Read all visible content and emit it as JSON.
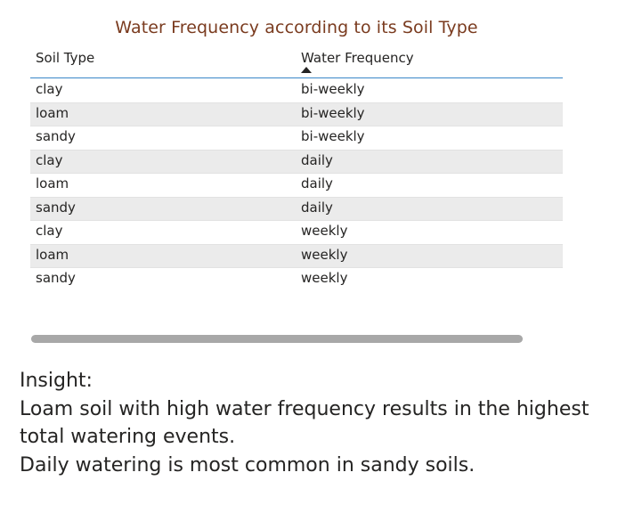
{
  "table_visual": {
    "title": "Water Frequency according to its Soil Type",
    "columns": [
      {
        "label": "Soil Type",
        "sorted": false
      },
      {
        "label": "Water Frequency",
        "sorted": true,
        "sort_direction": "ascending"
      }
    ],
    "rows": [
      {
        "soil_type": "clay",
        "water_frequency": "bi-weekly"
      },
      {
        "soil_type": "loam",
        "water_frequency": "bi-weekly"
      },
      {
        "soil_type": "sandy",
        "water_frequency": "bi-weekly"
      },
      {
        "soil_type": "clay",
        "water_frequency": "daily"
      },
      {
        "soil_type": "loam",
        "water_frequency": "daily"
      },
      {
        "soil_type": "sandy",
        "water_frequency": "daily"
      },
      {
        "soil_type": "clay",
        "water_frequency": "weekly"
      },
      {
        "soil_type": "loam",
        "water_frequency": "weekly"
      },
      {
        "soil_type": "sandy",
        "water_frequency": "weekly"
      }
    ]
  },
  "insight": {
    "heading": "Insight:",
    "lines": [
      "Loam soil with high water frequency results in the highest",
      "total watering events.",
      "Daily watering is most common in sandy soils."
    ]
  },
  "colors": {
    "title": "#7a3b1f",
    "header_rule": "#3a86c8",
    "alt_row": "#ebebeb",
    "scrollbar": "#a8a8a8",
    "text": "#252423"
  }
}
